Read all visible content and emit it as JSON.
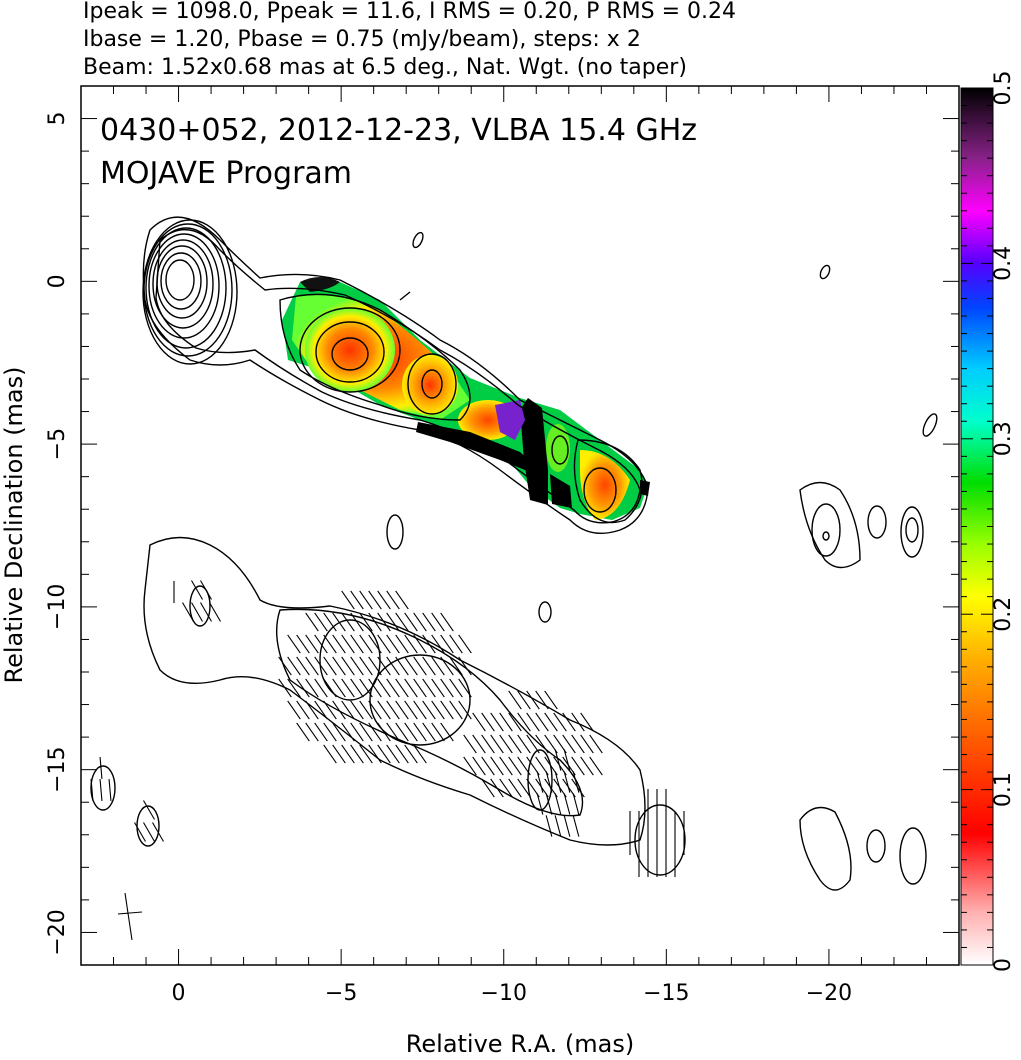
{
  "header": {
    "line1": "Ipeak = 1098.0, Ppeak = 11.6, I RMS = 0.20, P RMS = 0.24",
    "line2": "Ibase = 1.20, Pbase = 0.75 (mJy/beam), steps: x 2",
    "line3": "Beam: 1.52x0.68 mas at 6.5 deg., Nat. Wgt. (no taper)"
  },
  "chart_data": {
    "type": "heatmap",
    "title": "0430+052, 2012-12-23, VLBA 15.4 GHz",
    "subtitle": "MOJAVE Program",
    "xlabel": "Relative R.A. (mas)",
    "ylabel": "Relative Declination (mas)",
    "xlim": [
      3,
      -24
    ],
    "ylim": [
      -21,
      6
    ],
    "x_ticks": [
      0,
      -5,
      -10,
      -15,
      -20
    ],
    "x_tick_labels": [
      "0",
      "−5",
      "−10",
      "−15",
      "−20"
    ],
    "y_ticks": [
      5,
      0,
      -5,
      -10,
      -15,
      -20
    ],
    "y_tick_labels": [
      "5",
      "0",
      "−5",
      "−10",
      "−15",
      "−20"
    ],
    "colorbar": {
      "range": [
        0,
        0.5
      ],
      "ticks": [
        0,
        0.1,
        0.2,
        0.3,
        0.4,
        0.5
      ],
      "tick_labels": [
        "0",
        "0.1",
        "0.2",
        "0.3",
        "0.4",
        "0.5"
      ],
      "colormap": [
        "#ffffff",
        "#ff9999",
        "#ff0000",
        "#ff6600",
        "#ff9900",
        "#ffdd00",
        "#99ff00",
        "#00dd00",
        "#00ffff",
        "#0066ff",
        "#3300ff",
        "#ff00ff",
        "#660066",
        "#000000"
      ]
    },
    "core_position_mas": [
      0,
      0
    ],
    "peak_intensity_mJy_per_beam": 1098.0,
    "peak_polarization_mJy_per_beam": 11.6,
    "contour_base_I_mJy_per_beam": 1.2,
    "contour_base_P_mJy_per_beam": 0.75,
    "contour_step": 2,
    "beam": {
      "major_mas": 1.52,
      "minor_mas": 0.68,
      "pa_deg": 6.5
    }
  }
}
